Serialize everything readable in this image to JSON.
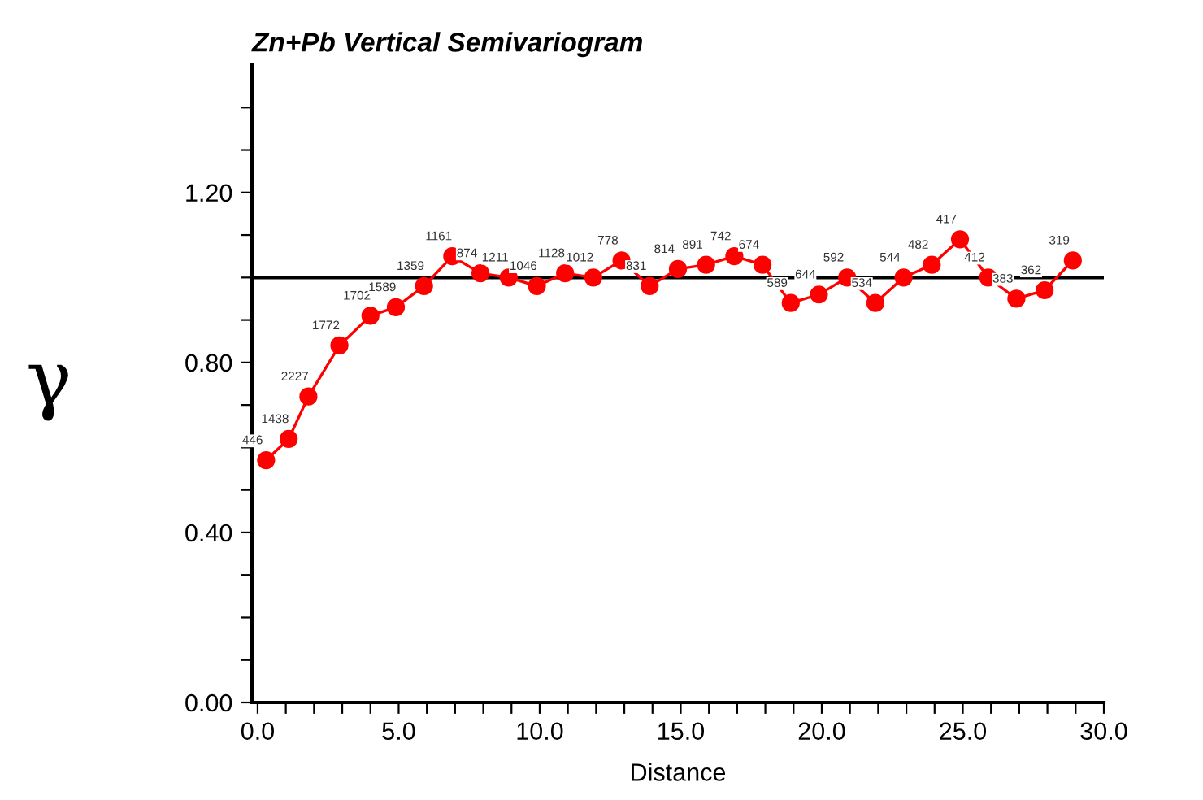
{
  "chart_data": {
    "type": "line",
    "title": "Zn+Pb Vertical Semivariogram",
    "xlabel": "Distance",
    "ylabel": "γ",
    "series": [
      {
        "color": "#ff0000",
        "x": [
          0.3,
          1.1,
          1.8,
          2.9,
          4.0,
          4.9,
          5.9,
          6.9,
          7.9,
          8.9,
          9.9,
          10.9,
          11.9,
          12.9,
          13.9,
          14.9,
          15.9,
          16.9,
          17.9,
          18.9,
          19.9,
          20.9,
          21.9,
          22.9,
          23.9,
          24.9,
          25.9,
          26.9,
          27.9,
          28.9
        ],
        "values": [
          0.57,
          0.62,
          0.72,
          0.84,
          0.91,
          0.93,
          0.98,
          1.05,
          1.01,
          1.0,
          0.98,
          1.01,
          1.0,
          1.04,
          0.98,
          1.02,
          1.03,
          1.05,
          1.03,
          0.94,
          0.96,
          1.0,
          0.94,
          1.0,
          1.03,
          1.09,
          1.0,
          0.95,
          0.97,
          1.04
        ]
      }
    ],
    "marker": "circle",
    "line_style": "solid",
    "annotations": [
      {
        "text": "446",
        "x": 0.3,
        "y": 0.57
      },
      {
        "text": "1438",
        "x": 1.1,
        "y": 0.62
      },
      {
        "text": "2227",
        "x": 1.8,
        "y": 0.72
      },
      {
        "text": "1772",
        "x": 2.9,
        "y": 0.84
      },
      {
        "text": "1702",
        "x": 4.0,
        "y": 0.91
      },
      {
        "text": "1589",
        "x": 4.9,
        "y": 0.93
      },
      {
        "text": "1359",
        "x": 5.9,
        "y": 0.98
      },
      {
        "text": "1161",
        "x": 6.9,
        "y": 1.05
      },
      {
        "text": "874",
        "x": 7.9,
        "y": 1.01
      },
      {
        "text": "1211",
        "x": 8.9,
        "y": 1.0
      },
      {
        "text": "1046",
        "x": 9.9,
        "y": 0.98
      },
      {
        "text": "1128",
        "x": 10.9,
        "y": 1.01
      },
      {
        "text": "1012",
        "x": 11.9,
        "y": 1.0
      },
      {
        "text": "778",
        "x": 12.9,
        "y": 1.04
      },
      {
        "text": "831",
        "x": 13.9,
        "y": 0.98
      },
      {
        "text": "814",
        "x": 14.9,
        "y": 1.02
      },
      {
        "text": "891",
        "x": 15.9,
        "y": 1.03
      },
      {
        "text": "742",
        "x": 16.9,
        "y": 1.05
      },
      {
        "text": "674",
        "x": 17.9,
        "y": 1.03
      },
      {
        "text": "589",
        "x": 18.9,
        "y": 0.94
      },
      {
        "text": "644",
        "x": 19.9,
        "y": 0.96
      },
      {
        "text": "592",
        "x": 20.9,
        "y": 1.0
      },
      {
        "text": "534",
        "x": 21.9,
        "y": 0.94
      },
      {
        "text": "544",
        "x": 22.9,
        "y": 1.0
      },
      {
        "text": "482",
        "x": 23.9,
        "y": 1.03
      },
      {
        "text": "417",
        "x": 24.9,
        "y": 1.09
      },
      {
        "text": "412",
        "x": 25.9,
        "y": 1.0
      },
      {
        "text": "383",
        "x": 26.9,
        "y": 0.95
      },
      {
        "text": "362",
        "x": 27.9,
        "y": 0.97
      },
      {
        "text": "319",
        "x": 28.9,
        "y": 1.04
      }
    ],
    "ref_lines": [
      {
        "axis": "y",
        "value": 1.0,
        "color": "#000000"
      }
    ],
    "xlim": [
      -0.2,
      30
    ],
    "ylim": [
      0,
      1.5
    ],
    "xticks": [
      {
        "value": 0,
        "label": "0.0"
      },
      {
        "value": 1,
        "label": null
      },
      {
        "value": 2,
        "label": null
      },
      {
        "value": 3,
        "label": null
      },
      {
        "value": 4,
        "label": null
      },
      {
        "value": 5,
        "label": "5.0"
      },
      {
        "value": 6,
        "label": null
      },
      {
        "value": 7,
        "label": null
      },
      {
        "value": 8,
        "label": null
      },
      {
        "value": 9,
        "label": null
      },
      {
        "value": 10,
        "label": "10.0"
      },
      {
        "value": 11,
        "label": null
      },
      {
        "value": 12,
        "label": null
      },
      {
        "value": 13,
        "label": null
      },
      {
        "value": 14,
        "label": null
      },
      {
        "value": 15,
        "label": "15.0"
      },
      {
        "value": 16,
        "label": null
      },
      {
        "value": 17,
        "label": null
      },
      {
        "value": 18,
        "label": null
      },
      {
        "value": 19,
        "label": null
      },
      {
        "value": 20,
        "label": "20.0"
      },
      {
        "value": 21,
        "label": null
      },
      {
        "value": 22,
        "label": null
      },
      {
        "value": 23,
        "label": null
      },
      {
        "value": 24,
        "label": null
      },
      {
        "value": 25,
        "label": "25.0"
      },
      {
        "value": 26,
        "label": null
      },
      {
        "value": 27,
        "label": null
      },
      {
        "value": 28,
        "label": null
      },
      {
        "value": 29,
        "label": null
      },
      {
        "value": 30,
        "label": "30.0"
      }
    ],
    "yticks": [
      {
        "value": 0,
        "label": "0.00"
      },
      {
        "value": 0.1,
        "label": null
      },
      {
        "value": 0.2,
        "label": null
      },
      {
        "value": 0.3,
        "label": null
      },
      {
        "value": 0.4,
        "label": "0.40"
      },
      {
        "value": 0.5,
        "label": null
      },
      {
        "value": 0.6,
        "label": null
      },
      {
        "value": 0.7,
        "label": null
      },
      {
        "value": 0.8,
        "label": "0.80"
      },
      {
        "value": 0.9,
        "label": null
      },
      {
        "value": 1.0,
        "label": null
      },
      {
        "value": 1.1,
        "label": null
      },
      {
        "value": 1.2,
        "label": "1.20"
      },
      {
        "value": 1.3,
        "label": null
      },
      {
        "value": 1.4,
        "label": null
      }
    ],
    "grid": false,
    "legend": false
  }
}
